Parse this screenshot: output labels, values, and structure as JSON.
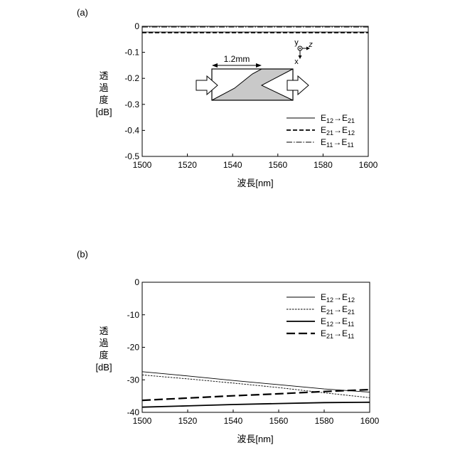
{
  "chart_data": [
    {
      "panel_label": "(a)",
      "type": "line",
      "xlabel": "波長[nm]",
      "ylabel": [
        "透",
        "過",
        "度",
        "[dB]"
      ],
      "xlim": [
        1500,
        1600
      ],
      "ylim": [
        -0.5,
        0
      ],
      "xticks": [
        "1500",
        "1520",
        "1540",
        "1560",
        "1580",
        "1600"
      ],
      "yticks": [
        "0",
        "-0.1",
        "-0.2",
        "-0.3",
        "-0.4",
        "-0.5"
      ],
      "legend_position": "bottom-right",
      "series": [
        {
          "name": "E12→E21",
          "style": "solid-thin",
          "x": [
            1500,
            1600
          ],
          "y": [
            -0.022,
            -0.022
          ]
        },
        {
          "name": "E21→E12",
          "style": "dashed",
          "x": [
            1500,
            1600
          ],
          "y": [
            -0.024,
            -0.024
          ]
        },
        {
          "name": "E11→E11",
          "style": "dashdot",
          "x": [
            1500,
            1600
          ],
          "y": [
            -0.003,
            -0.003
          ]
        }
      ],
      "legend": [
        {
          "a": "E",
          "as": "12",
          "b": "E",
          "bs": "21",
          "style": "solid-thin"
        },
        {
          "a": "E",
          "as": "21",
          "b": "E",
          "bs": "12",
          "style": "dashed"
        },
        {
          "a": "E",
          "as": "11",
          "b": "E",
          "bs": "11",
          "style": "dashdot"
        }
      ],
      "inset": {
        "dimension_label": "1.2mm",
        "axes": {
          "y": "y",
          "z": "z",
          "x": "x"
        },
        "arrow": "→"
      }
    },
    {
      "panel_label": "(b)",
      "type": "line",
      "xlabel": "波長[nm]",
      "ylabel": [
        "透",
        "過",
        "度",
        "[dB]"
      ],
      "xlim": [
        1500,
        1600
      ],
      "ylim": [
        -40,
        0
      ],
      "xticks": [
        "1500",
        "1520",
        "1540",
        "1560",
        "1580",
        "1600"
      ],
      "yticks": [
        "0",
        "-10",
        "-20",
        "-30",
        "-40"
      ],
      "legend_position": "top-right",
      "series": [
        {
          "name": "E12→E12",
          "style": "solid-thin",
          "x": [
            1500,
            1520,
            1540,
            1560,
            1580,
            1600
          ],
          "y": [
            -27.5,
            -28.8,
            -30.2,
            -31.5,
            -32.8,
            -33.8
          ]
        },
        {
          "name": "E21→E21",
          "style": "dotted",
          "x": [
            1500,
            1520,
            1540,
            1560,
            1580,
            1600
          ],
          "y": [
            -28.5,
            -29.7,
            -31.0,
            -32.4,
            -34.0,
            -35.5
          ]
        },
        {
          "name": "E12→E11",
          "style": "solid-thick",
          "x": [
            1500,
            1520,
            1540,
            1560,
            1580,
            1600
          ],
          "y": [
            -38.4,
            -38.0,
            -37.6,
            -37.3,
            -37.0,
            -36.9
          ]
        },
        {
          "name": "E21→E11",
          "style": "dashed-thick",
          "x": [
            1500,
            1520,
            1540,
            1560,
            1580,
            1600
          ],
          "y": [
            -36.3,
            -35.6,
            -34.9,
            -34.3,
            -33.6,
            -33.0
          ]
        }
      ],
      "legend": [
        {
          "a": "E",
          "as": "12",
          "b": "E",
          "bs": "12",
          "style": "solid-thin"
        },
        {
          "a": "E",
          "as": "21",
          "b": "E",
          "bs": "21",
          "style": "dotted"
        },
        {
          "a": "E",
          "as": "12",
          "b": "E",
          "bs": "11",
          "style": "solid-thick"
        },
        {
          "a": "E",
          "as": "21",
          "b": "E",
          "bs": "11",
          "style": "dashed-thick"
        }
      ]
    }
  ]
}
